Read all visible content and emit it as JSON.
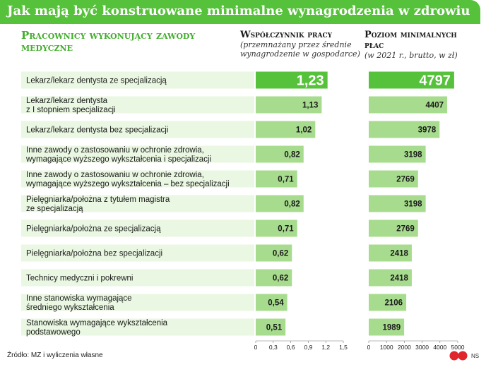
{
  "title": "Jak mają być konstruowane minimalne wynagrodzenia w zdrowiu",
  "category_header": "Pracownicy wykonujący zawody medyczne",
  "coef_header": {
    "heading": "Współczynnik pracy",
    "subheading": "(przemnażany przez średnie wynagrodzenie w gospodarce)"
  },
  "wage_header": {
    "heading": "Poziom minimalnych płac",
    "subheading": "(w 2021 r., brutto, w zł)"
  },
  "source": "Źródło: MZ i wyliczenia własne",
  "logo_text": "NS",
  "colors": {
    "accent": "#56c13a",
    "band": "#eaf7e2",
    "bar": "#a7dc8e",
    "bar_highlight": "#56c13a"
  },
  "chart_data": [
    {
      "type": "bar",
      "orientation": "horizontal",
      "title": "Współczynnik pracy",
      "categories": [
        "Lekarz/lekarz dentysta ze specjalizacją",
        "Lekarz/lekarz dentysta\nz I stopniem specjalizacji",
        "Lekarz/lekarz dentysta bez specjalizacji",
        "Inne zawody o zastosowaniu w ochronie zdrowia,\nwymagające wyższego wykształcenia i specjalizacji",
        "Inne zawody o zastosowaniu w ochronie zdrowia,\nwymagające wyższego wykształcenia – bez specjalizacji",
        "Pielęgniarka/położna z tytułem magistra\nze specjalizacją",
        "Pielęgniarka/położna ze specjalizacją",
        "Pielęgniarka/położna bez specjalizacji",
        "Technicy medyczni i pokrewni",
        "Inne stanowiska wymagające\nśredniego wykształcenia",
        "Stanowiska wymagające wykształcenia\npodstawowego"
      ],
      "values": [
        1.23,
        1.13,
        1.02,
        0.82,
        0.71,
        0.82,
        0.71,
        0.62,
        0.62,
        0.54,
        0.51
      ],
      "value_labels": [
        "1,23",
        "1,13",
        "1,02",
        "0,82",
        "0,71",
        "0,82",
        "0,71",
        "0,62",
        "0,62",
        "0,54",
        "0,51"
      ],
      "xlim": [
        0,
        1.5
      ],
      "ticks": [
        0,
        0.3,
        0.6,
        0.9,
        1.2,
        1.5
      ],
      "tick_labels": [
        "0",
        "0,3",
        "0,6",
        "0,9",
        "1,2",
        "1,5"
      ],
      "highlight_index": 0
    },
    {
      "type": "bar",
      "orientation": "horizontal",
      "title": "Poziom minimalnych płac",
      "values": [
        4797,
        4407,
        3978,
        3198,
        2769,
        3198,
        2769,
        2418,
        2418,
        2106,
        1989
      ],
      "value_labels": [
        "4797",
        "4407",
        "3978",
        "3198",
        "2769",
        "3198",
        "2769",
        "2418",
        "2418",
        "2106",
        "1989"
      ],
      "xlim": [
        0,
        5000
      ],
      "ticks": [
        0,
        1000,
        2000,
        3000,
        4000,
        5000
      ],
      "tick_labels": [
        "0",
        "1000",
        "2000",
        "3000",
        "4000",
        "5000"
      ],
      "highlight_index": 0
    }
  ]
}
